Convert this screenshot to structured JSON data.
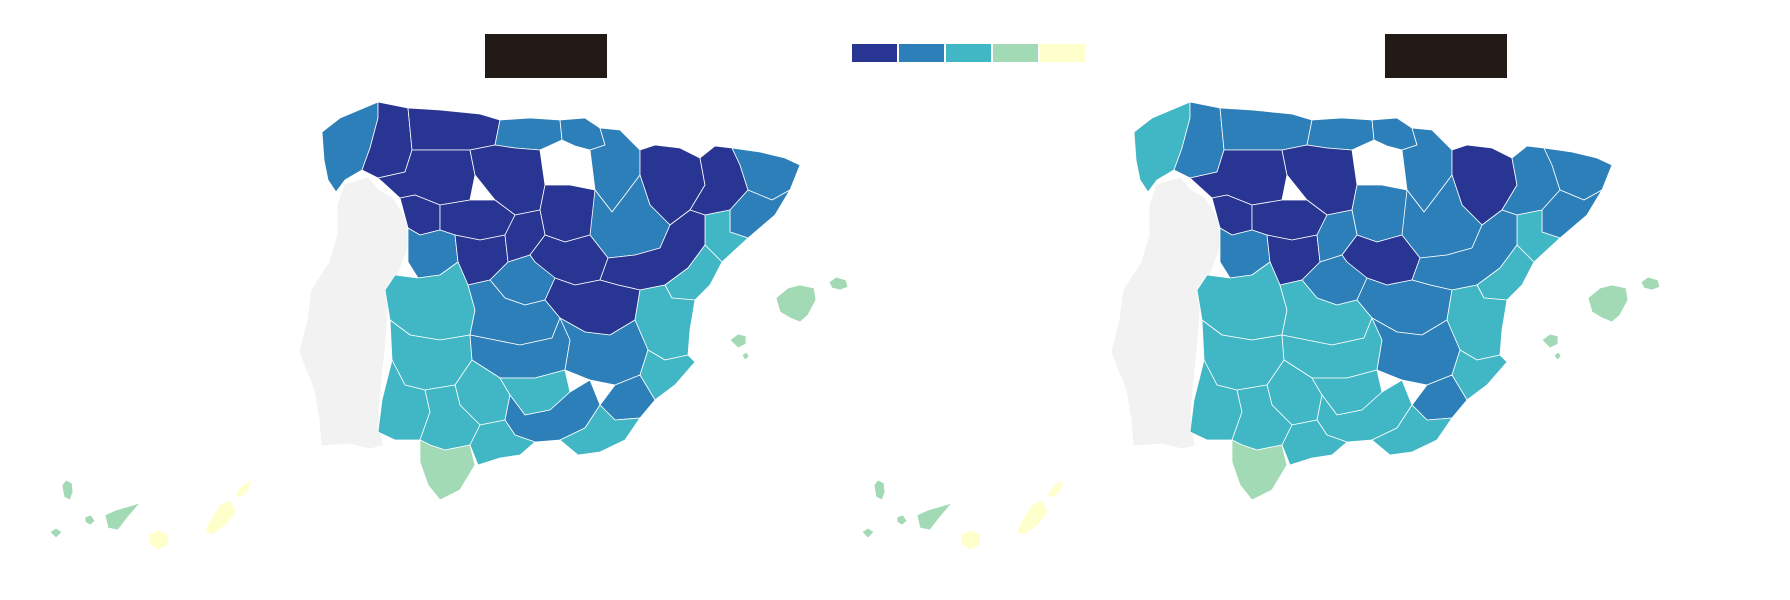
{
  "legend": {
    "colors": [
      "#283593",
      "#2c7fb8",
      "#41b6c4",
      "#a1dab4",
      "#ffffcc"
    ]
  },
  "colors": {
    "portugal": "#f2f2f2",
    "border": "#ffffff",
    "title_box": "#221a17",
    "background": "#ffffff"
  },
  "maps": [
    {
      "id": "left",
      "title": "",
      "regions": {
        "galicia_coast": 1,
        "galicia_inland": 0,
        "asturias": 0,
        "cantabria": 1,
        "basque": 1,
        "navarra": 1,
        "huesca": 0,
        "lleida": 0,
        "girona": 1,
        "barcelona": 1,
        "tarragona": 2,
        "leon": 0,
        "burgos": 0,
        "zamora": 0,
        "valladolid": 0,
        "soria": 0,
        "zaragoza": 1,
        "salamanca": 1,
        "avila": 0,
        "segovia": 0,
        "guadalajara": 0,
        "teruel": 0,
        "madrid": 1,
        "cuenca": 0,
        "castellon": 2,
        "caceres": 2,
        "toledo": 1,
        "valencia": 2,
        "badajoz": 2,
        "ciudad_real": 1,
        "albacete": 1,
        "alicante": 2,
        "cordoba": 2,
        "jaen": 2,
        "murcia": 1,
        "huelva": 2,
        "sevilla": 2,
        "granada": 1,
        "almeria": 2,
        "cadiz": 3,
        "malaga": 2,
        "balearic": 3,
        "canary_west": 3,
        "canary_east": 4
      }
    },
    {
      "id": "right",
      "title": "",
      "regions": {
        "galicia_coast": 2,
        "galicia_inland": 1,
        "asturias": 1,
        "cantabria": 1,
        "basque": 1,
        "navarra": 1,
        "huesca": 0,
        "lleida": 1,
        "girona": 1,
        "barcelona": 1,
        "tarragona": 2,
        "leon": 0,
        "burgos": 0,
        "zamora": 0,
        "valladolid": 0,
        "soria": 1,
        "zaragoza": 1,
        "salamanca": 1,
        "avila": 0,
        "segovia": 1,
        "guadalajara": 0,
        "teruel": 1,
        "madrid": 1,
        "cuenca": 1,
        "castellon": 2,
        "caceres": 2,
        "toledo": 2,
        "valencia": 2,
        "badajoz": 2,
        "ciudad_real": 2,
        "albacete": 1,
        "alicante": 2,
        "cordoba": 2,
        "jaen": 2,
        "murcia": 1,
        "huelva": 2,
        "sevilla": 2,
        "granada": 2,
        "almeria": 2,
        "cadiz": 3,
        "malaga": 2,
        "balearic": 3,
        "canary_west": 3,
        "canary_east": 4
      }
    }
  ]
}
